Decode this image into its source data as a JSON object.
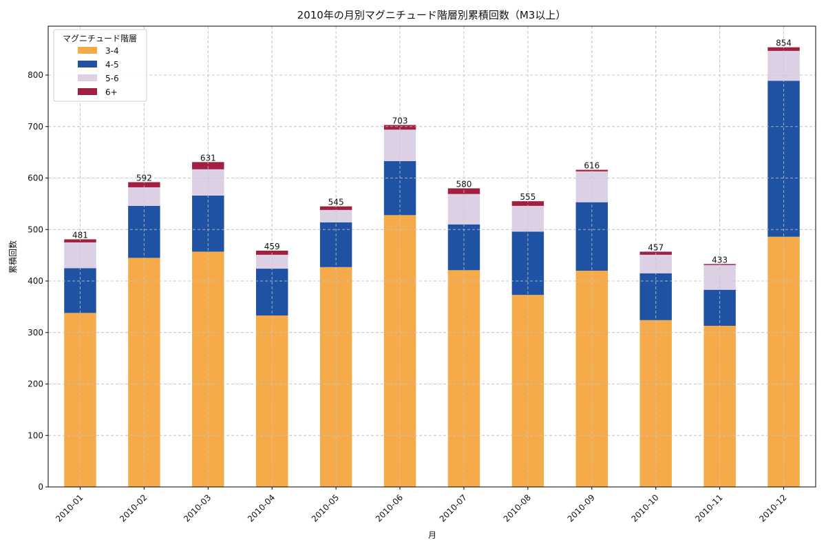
{
  "chart_data": {
    "type": "bar",
    "stacked": true,
    "title": "2010年の月別マグニチュード階層別累積回数（M3以上）",
    "xlabel": "月",
    "ylabel": "累積回数",
    "ylim": [
      0,
      895
    ],
    "yticks": [
      0,
      100,
      200,
      300,
      400,
      500,
      600,
      700,
      800
    ],
    "grid": true,
    "legend": {
      "title": "マグニチュード階層",
      "placement": "top-left"
    },
    "categories": [
      "2010-01",
      "2010-02",
      "2010-03",
      "2010-04",
      "2010-05",
      "2010-06",
      "2010-07",
      "2010-08",
      "2010-09",
      "2010-10",
      "2010-11",
      "2010-12"
    ],
    "series": [
      {
        "name": "3-4",
        "color": "#F5AB4A",
        "values": [
          338,
          445,
          457,
          333,
          427,
          528,
          421,
          373,
          420,
          324,
          313,
          486
        ]
      },
      {
        "name": "4-5",
        "color": "#1F52A3",
        "values": [
          87,
          101,
          109,
          91,
          87,
          105,
          89,
          123,
          133,
          91,
          70,
          303
        ]
      },
      {
        "name": "5-6",
        "color": "#DCD0E5",
        "values": [
          50,
          36,
          51,
          27,
          24,
          61,
          59,
          50,
          60,
          36,
          48,
          58
        ]
      },
      {
        "name": "6+",
        "color": "#A12042",
        "values": [
          6,
          10,
          14,
          8,
          7,
          9,
          11,
          9,
          3,
          6,
          2,
          7
        ]
      }
    ],
    "totals": [
      481,
      592,
      631,
      459,
      545,
      703,
      580,
      555,
      616,
      457,
      433,
      854
    ]
  }
}
